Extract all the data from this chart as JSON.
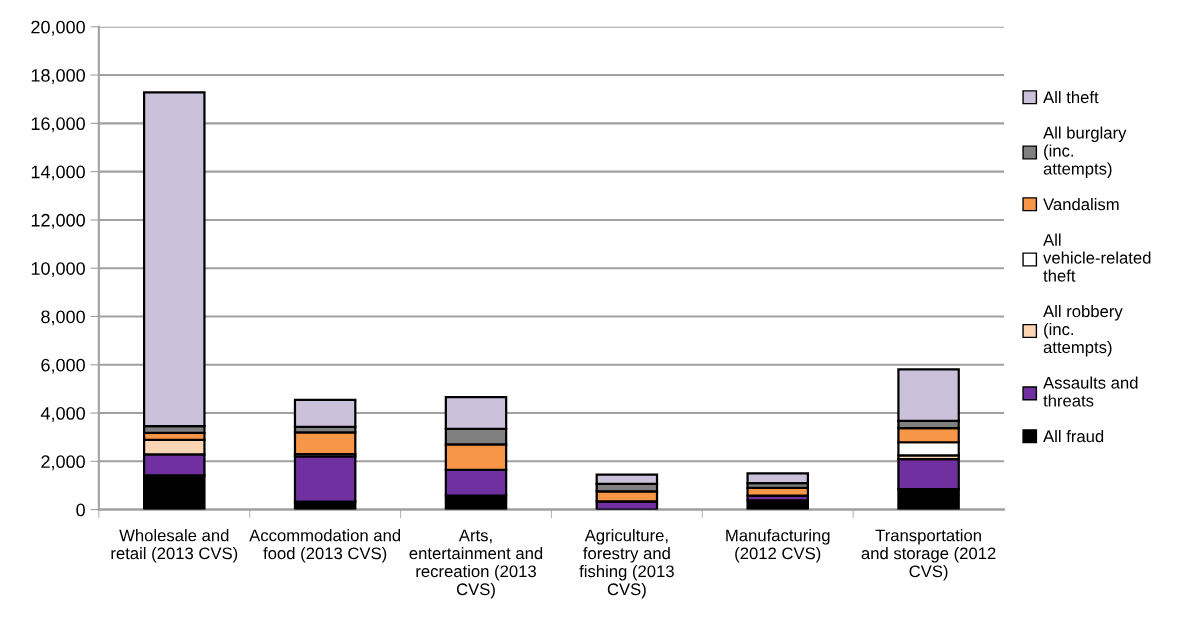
{
  "chart_data": {
    "type": "bar",
    "stacked": true,
    "categories": [
      "Wholesale and retail (2013 CVS)",
      "Accommodation and food (2013 CVS)",
      "Arts, entertainment and recreation (2013 CVS)",
      "Agriculture, forestry and fishing (2013 CVS)",
      "Manufacturing (2012 CVS)",
      "Transportation and storage (2012 CVS)"
    ],
    "series": [
      {
        "name": "All fraud",
        "color": "#000000",
        "values": [
          1420,
          330,
          580,
          null,
          380,
          850
        ]
      },
      {
        "name": "Assaults and threats",
        "color": "#7030a0",
        "values": [
          870,
          1870,
          1070,
          340,
          200,
          1240
        ]
      },
      {
        "name": "All robbery (inc. attempts)",
        "color": "#fcd5b5",
        "values": [
          600,
          100,
          null,
          null,
          null,
          160
        ]
      },
      {
        "name": "All vehicle-related theft",
        "color": "#ffffff",
        "values": [
          null,
          null,
          null,
          null,
          null,
          540
        ]
      },
      {
        "name": "Vandalism",
        "color": "#f79646",
        "values": [
          290,
          900,
          1050,
          420,
          320,
          590
        ]
      },
      {
        "name": "All burglary (inc. attempts)",
        "color": "#808080",
        "values": [
          280,
          230,
          650,
          310,
          200,
          300
        ]
      },
      {
        "name": "All theft",
        "color": "#ccc1da",
        "values": [
          13820,
          1120,
          1310,
          380,
          400,
          2130
        ]
      }
    ],
    "ylim": [
      0,
      20000
    ],
    "yticks": [
      {
        "value": 0,
        "label": "0"
      },
      {
        "value": 2000,
        "label": "2,000"
      },
      {
        "value": 4000,
        "label": "4,000"
      },
      {
        "value": 6000,
        "label": "6,000"
      },
      {
        "value": 8000,
        "label": "8,000"
      },
      {
        "value": 10000,
        "label": "10,000"
      },
      {
        "value": 12000,
        "label": "12,000"
      },
      {
        "value": 14000,
        "label": "14,000"
      },
      {
        "value": 16000,
        "label": "16,000"
      },
      {
        "value": 18000,
        "label": "18,000"
      },
      {
        "value": 20000,
        "label": "20,000"
      }
    ],
    "grid": "y",
    "legend": "right"
  }
}
